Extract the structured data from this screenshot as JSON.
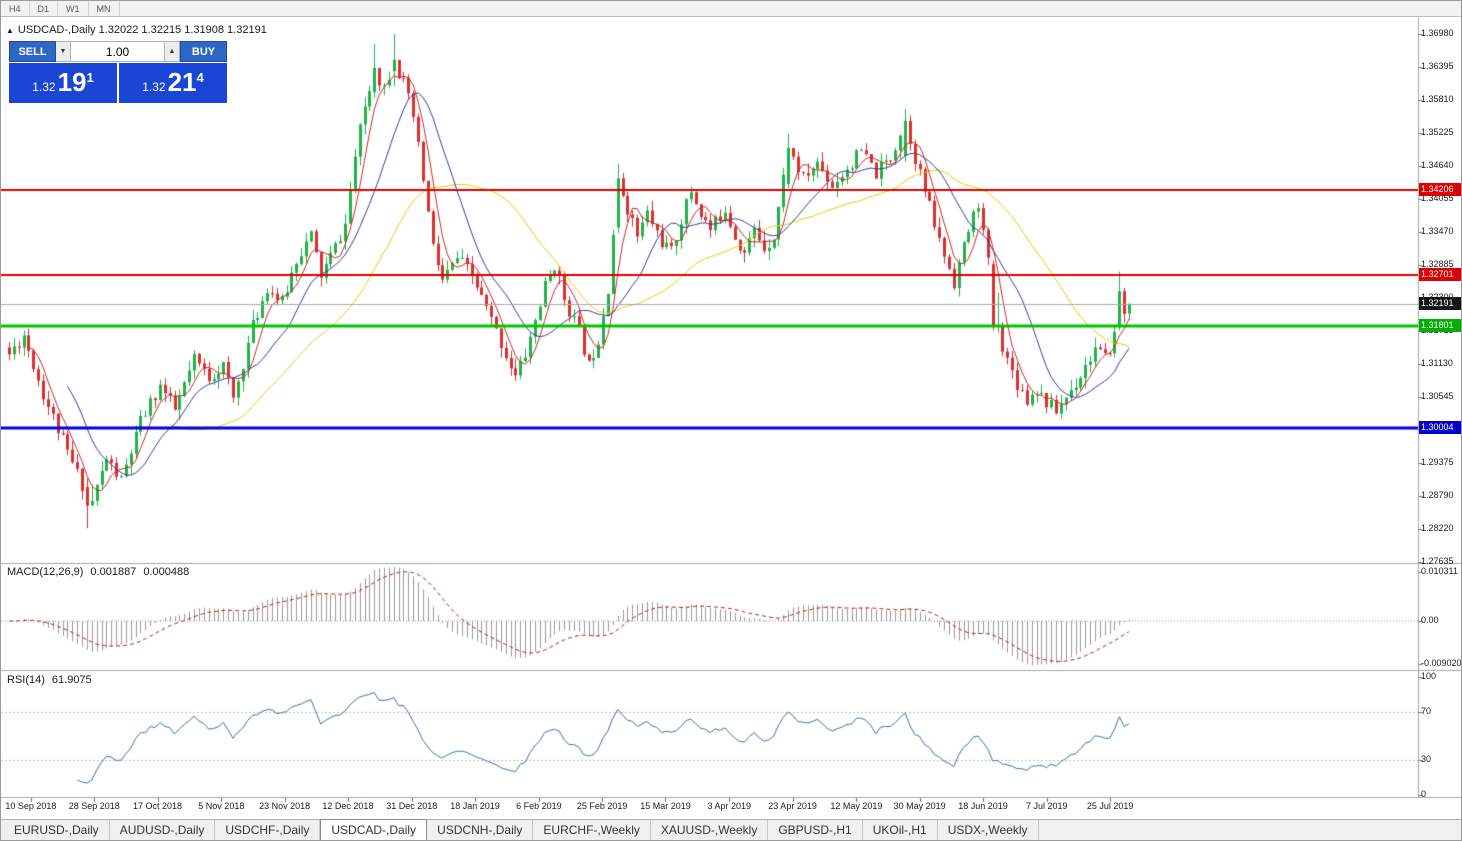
{
  "toolbar": {
    "timeframes": [
      {
        "label": "H4"
      },
      {
        "label": "D1"
      },
      {
        "label": "W1"
      },
      {
        "label": "MN"
      }
    ]
  },
  "chart": {
    "title_arrow": "▲",
    "title_text": "USDCAD-,Daily  1.32022 1.32215 1.31908 1.32191"
  },
  "trade_panel": {
    "sell_label": "SELL",
    "buy_label": "BUY",
    "volume": "1.00",
    "spin_down_icon": "▼",
    "spin_up_icon": "▲",
    "sell_price": {
      "small": "1.32",
      "big": "19",
      "sup": "1"
    },
    "buy_price": {
      "small": "1.32",
      "big": "21",
      "sup": "4"
    }
  },
  "price_axis": {
    "labels": [
      "1.36980",
      "1.36395",
      "1.35810",
      "1.35225",
      "1.34640",
      "1.34055",
      "1.33470",
      "1.32885",
      "1.32300",
      "1.31715",
      "1.31130",
      "1.30545",
      "1.29960",
      "1.29375",
      "1.28790",
      "1.28220",
      "1.27635"
    ]
  },
  "levels": [
    {
      "label": "1.34206",
      "value": 1.34206,
      "line_color": "#dd0000",
      "tag_color": "#dd0000",
      "line_width": 2,
      "type": "resistance"
    },
    {
      "label": "1.32701",
      "value": 1.32701,
      "line_color": "#dd0000",
      "tag_color": "#dd0000",
      "line_width": 2,
      "type": "resistance"
    },
    {
      "label": "1.32191",
      "value": 1.32191,
      "line_color": "#a8a8a8",
      "tag_color": "#141414",
      "line_width": 1,
      "type": "current-price"
    },
    {
      "label": "1.31801",
      "value": 1.31801,
      "line_color": "#00c400",
      "tag_color": "#00b000",
      "line_width": 3,
      "type": "support"
    },
    {
      "label": "1.30004",
      "value": 1.30004,
      "line_color": "#0000d8",
      "tag_color": "#0000c8",
      "line_width": 3,
      "type": "support"
    }
  ],
  "macd": {
    "label": "MACD(12,26,9)",
    "value_main": "0.001887",
    "value_signal": "0.000488",
    "axis": [
      {
        "text": "0.010311",
        "value": 0.010311
      },
      {
        "text": "0.00",
        "value": 0
      },
      {
        "text": "-0.0090203",
        "value": -0.0090203
      }
    ]
  },
  "rsi": {
    "label": "RSI(14)",
    "value": "61.9075",
    "axis": [
      {
        "text": "100",
        "value": 100
      },
      {
        "text": "70",
        "value": 70
      },
      {
        "text": "30",
        "value": 30
      },
      {
        "text": "0",
        "value": 0
      }
    ]
  },
  "date_axis": {
    "labels": [
      {
        "text": "10 Sep 2018",
        "i": 4.5
      },
      {
        "text": "28 Sep 2018",
        "i": 17.5
      },
      {
        "text": "17 Oct 2018",
        "i": 30.5
      },
      {
        "text": "5 Nov 2018",
        "i": 43.6
      },
      {
        "text": "23 Nov 2018",
        "i": 56.6
      },
      {
        "text": "12 Dec 2018",
        "i": 69.6
      },
      {
        "text": "31 Dec 2018",
        "i": 82.7
      },
      {
        "text": "18 Jan 2019",
        "i": 95.7
      },
      {
        "text": "6 Feb 2019",
        "i": 108.8
      },
      {
        "text": "25 Feb 2019",
        "i": 121.8
      },
      {
        "text": "15 Mar 2019",
        "i": 134.8
      },
      {
        "text": "3 Apr 2019",
        "i": 147.9
      },
      {
        "text": "23 Apr 2019",
        "i": 160.9
      },
      {
        "text": "12 May 2019",
        "i": 174
      },
      {
        "text": "30 May 2019",
        "i": 187
      },
      {
        "text": "18 Jun 2019",
        "i": 200
      },
      {
        "text": "7 Jul 2019",
        "i": 213.1
      },
      {
        "text": "25 Jul 2019",
        "i": 226.1
      }
    ]
  },
  "tabs": [
    {
      "label": "EURUSD-,Daily",
      "active": false
    },
    {
      "label": "AUDUSD-,Daily",
      "active": false
    },
    {
      "label": "USDCHF-,Daily",
      "active": false
    },
    {
      "label": "USDCAD-,Daily",
      "active": true
    },
    {
      "label": "USDCNH-,Daily",
      "active": false
    },
    {
      "label": "EURCHF-,Weekly",
      "active": false
    },
    {
      "label": "XAUUSD-,Weekly",
      "active": false
    },
    {
      "label": "GBPUSD-,H1",
      "active": false
    },
    {
      "label": "UKOil-,H1",
      "active": false
    },
    {
      "label": "USDX-,Weekly",
      "active": false
    }
  ],
  "chart_data": {
    "type": "candlestick",
    "symbol": "USDCAD-",
    "timeframe": "Daily",
    "current_bar": {
      "open": 1.32022,
      "high": 1.32215,
      "low": 1.31908,
      "close": 1.32191
    },
    "bid": "1.32191",
    "ask": "1.32214",
    "visible_range": {
      "start": "10 Sep 2018",
      "end": "25 Jul 2019"
    },
    "price_axis_range": [
      1.27635,
      1.3698
    ],
    "horizontal_lines": [
      1.34206,
      1.32701,
      1.31801,
      1.30004
    ],
    "indicators": {
      "macd": {
        "fast": 12,
        "slow": 26,
        "signal": 9,
        "current_main": 0.001887,
        "current_signal": 0.000488,
        "axis_max": 0.010311,
        "axis_min": -0.0090203
      },
      "rsi": {
        "period": 14,
        "current": 61.9075,
        "levels": [
          70,
          30
        ]
      }
    },
    "moving_averages": [
      {
        "period": 34,
        "color": "#e3cf07"
      },
      {
        "period": 13,
        "color": "#3a3a9e"
      },
      {
        "period": 5,
        "color": "#cc2929"
      }
    ],
    "colors": {
      "up": "#22b14c",
      "down": "#d93030",
      "macd_hist": "#9a9a9a",
      "macd_signal": "#b22222",
      "rsi_line": "#3e6fa8"
    },
    "candle_count": 231,
    "waypoints": [
      [
        0,
        1.313
      ],
      [
        3,
        1.3165
      ],
      [
        7,
        1.306
      ],
      [
        12,
        1.2955
      ],
      [
        15,
        1.29
      ],
      [
        17,
        1.287
      ],
      [
        20,
        1.2945
      ],
      [
        23,
        1.2905
      ],
      [
        27,
        1.301
      ],
      [
        31,
        1.3075
      ],
      [
        34,
        1.303
      ],
      [
        38,
        1.312
      ],
      [
        41,
        1.309
      ],
      [
        44,
        1.311
      ],
      [
        46,
        1.305
      ],
      [
        50,
        1.318
      ],
      [
        53,
        1.325
      ],
      [
        56,
        1.322
      ],
      [
        59,
        1.33
      ],
      [
        62,
        1.334
      ],
      [
        64,
        1.327
      ],
      [
        67,
        1.332
      ],
      [
        69,
        1.336
      ],
      [
        71,
        1.348
      ],
      [
        73,
        1.357
      ],
      [
        75,
        1.363
      ],
      [
        77,
        1.3605
      ],
      [
        79,
        1.365
      ],
      [
        81,
        1.361
      ],
      [
        83,
        1.355
      ],
      [
        85,
        1.344
      ],
      [
        87,
        1.332
      ],
      [
        89,
        1.326
      ],
      [
        92,
        1.33
      ],
      [
        95,
        1.327
      ],
      [
        98,
        1.321
      ],
      [
        101,
        1.315
      ],
      [
        104,
        1.309
      ],
      [
        106,
        1.313
      ],
      [
        108,
        1.319
      ],
      [
        110,
        1.325
      ],
      [
        112,
        1.329
      ],
      [
        114,
        1.323
      ],
      [
        117,
        1.317
      ],
      [
        119,
        1.311
      ],
      [
        121,
        1.316
      ],
      [
        123,
        1.325
      ],
      [
        125,
        1.344
      ],
      [
        127,
        1.339
      ],
      [
        129,
        1.334
      ],
      [
        131,
        1.338
      ],
      [
        134,
        1.333
      ],
      [
        136,
        1.331
      ],
      [
        138,
        1.337
      ],
      [
        140,
        1.342
      ],
      [
        142,
        1.338
      ],
      [
        144,
        1.335
      ],
      [
        147,
        1.339
      ],
      [
        149,
        1.334
      ],
      [
        151,
        1.331
      ],
      [
        153,
        1.335
      ],
      [
        155,
        1.332
      ],
      [
        157,
        1.334
      ],
      [
        160,
        1.3495
      ],
      [
        163,
        1.344
      ],
      [
        166,
        1.347
      ],
      [
        169,
        1.343
      ],
      [
        172,
        1.346
      ],
      [
        175,
        1.349
      ],
      [
        178,
        1.345
      ],
      [
        181,
        1.348
      ],
      [
        184,
        1.3545
      ],
      [
        186,
        1.348
      ],
      [
        188,
        1.342
      ],
      [
        191,
        1.333
      ],
      [
        194,
        1.326
      ],
      [
        197,
        1.335
      ],
      [
        199,
        1.34
      ],
      [
        201,
        1.329
      ],
      [
        203,
        1.3175
      ],
      [
        205,
        1.312
      ],
      [
        207,
        1.308
      ],
      [
        209,
        1.305
      ],
      [
        211,
        1.307
      ],
      [
        213,
        1.3045
      ],
      [
        215,
        1.303
      ],
      [
        217,
        1.3055
      ],
      [
        219,
        1.308
      ],
      [
        221,
        1.311
      ],
      [
        223,
        1.314
      ],
      [
        225,
        1.312
      ],
      [
        227,
        1.3165
      ],
      [
        229,
        1.32
      ],
      [
        230,
        1.3219
      ]
    ],
    "overrides": [
      {
        "i": 16,
        "o": 1.2895,
        "h": 1.291,
        "l": 1.2822,
        "c": 1.2862
      },
      {
        "i": 75,
        "o": 1.3595,
        "h": 1.368,
        "l": 1.3585,
        "c": 1.3638
      },
      {
        "i": 79,
        "o": 1.3632,
        "h": 1.3698,
        "l": 1.3605,
        "c": 1.3652
      },
      {
        "i": 125,
        "o": 1.3355,
        "h": 1.3468,
        "l": 1.3345,
        "c": 1.3442
      },
      {
        "i": 160,
        "o": 1.3432,
        "h": 1.3521,
        "l": 1.3425,
        "c": 1.3496
      },
      {
        "i": 184,
        "o": 1.3482,
        "h": 1.3565,
        "l": 1.3472,
        "c": 1.3544
      },
      {
        "i": 202,
        "o": 1.329,
        "h": 1.3296,
        "l": 1.3172,
        "c": 1.318
      },
      {
        "i": 228,
        "o": 1.3178,
        "h": 1.3277,
        "l": 1.3172,
        "c": 1.3242
      },
      {
        "i": 229,
        "o": 1.3242,
        "h": 1.3248,
        "l": 1.3186,
        "c": 1.3202
      },
      {
        "i": 230,
        "o": 1.32022,
        "h": 1.32215,
        "l": 1.31908,
        "c": 1.32191
      }
    ]
  }
}
